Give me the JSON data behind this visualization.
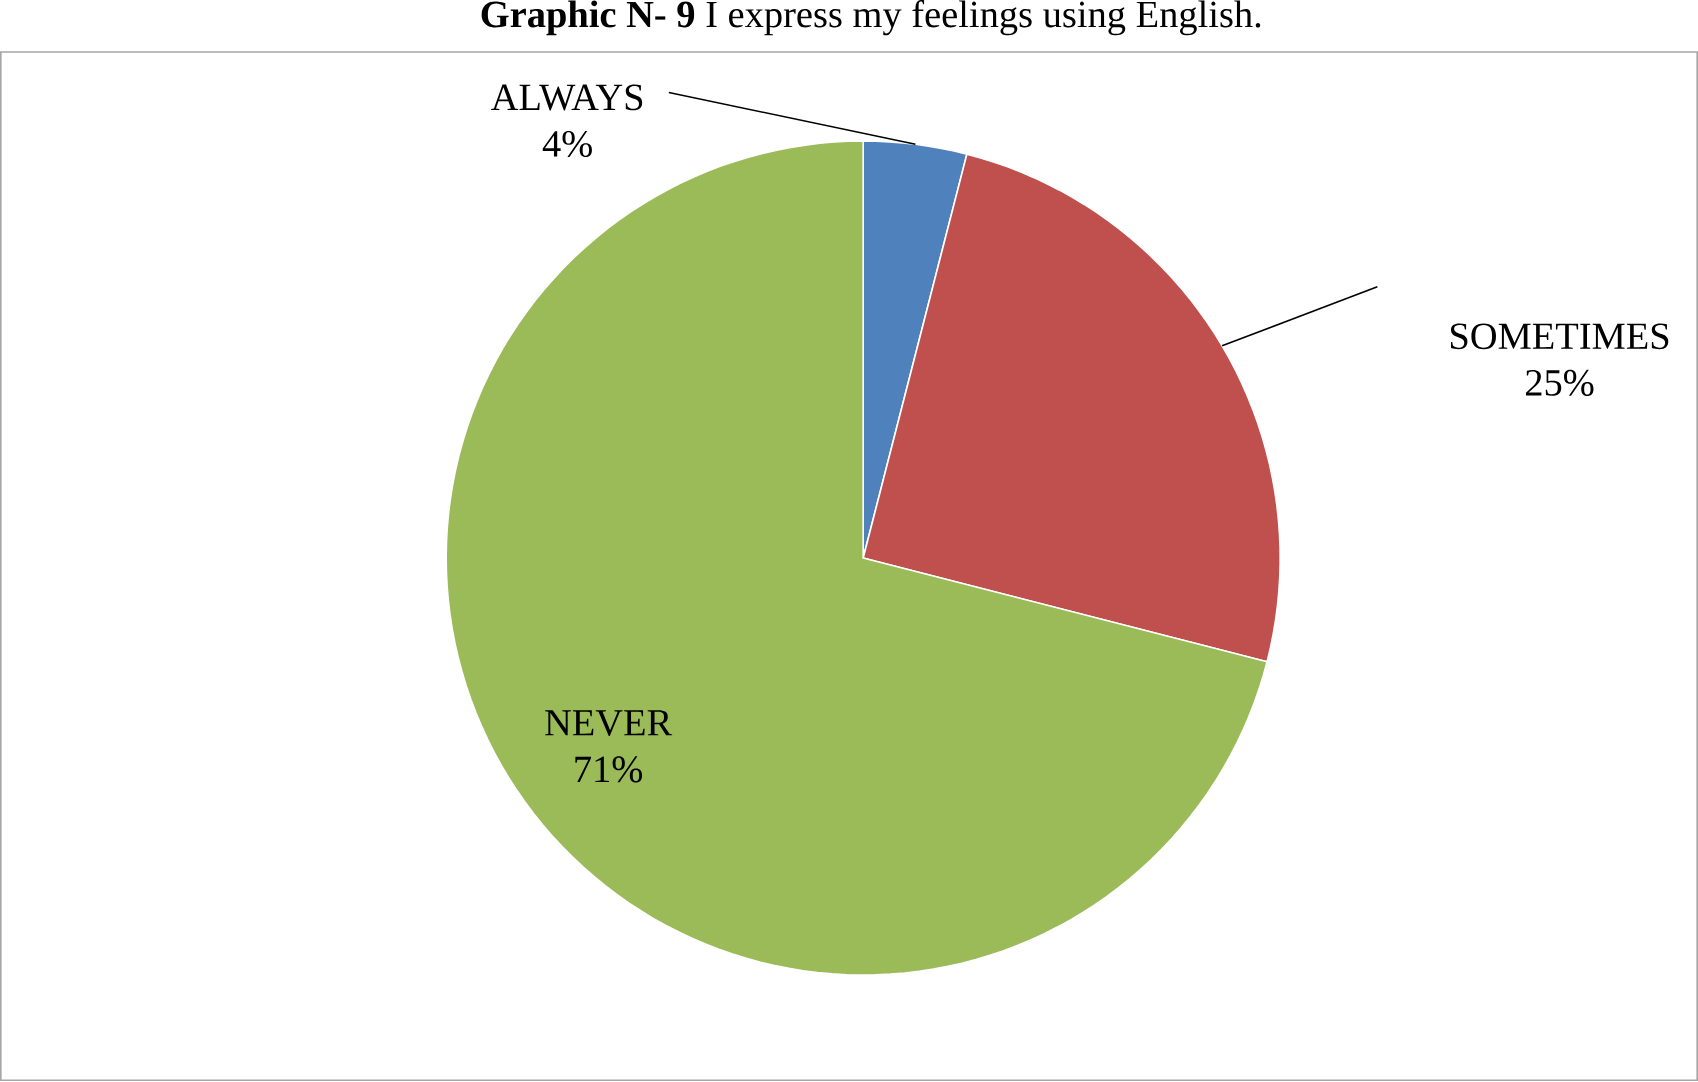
{
  "chart_data": {
    "type": "pie",
    "title": "**Graphic N- 9** I express my feelings using English.",
    "categories": [
      "ALWAYS",
      "SOMETIMES",
      "NEVER"
    ],
    "values": [
      4,
      25,
      71
    ],
    "value_labels": [
      "4%",
      "25%",
      "71%"
    ],
    "colors": [
      "#4f81bd",
      "#c0504d",
      "#9bbb59"
    ]
  }
}
